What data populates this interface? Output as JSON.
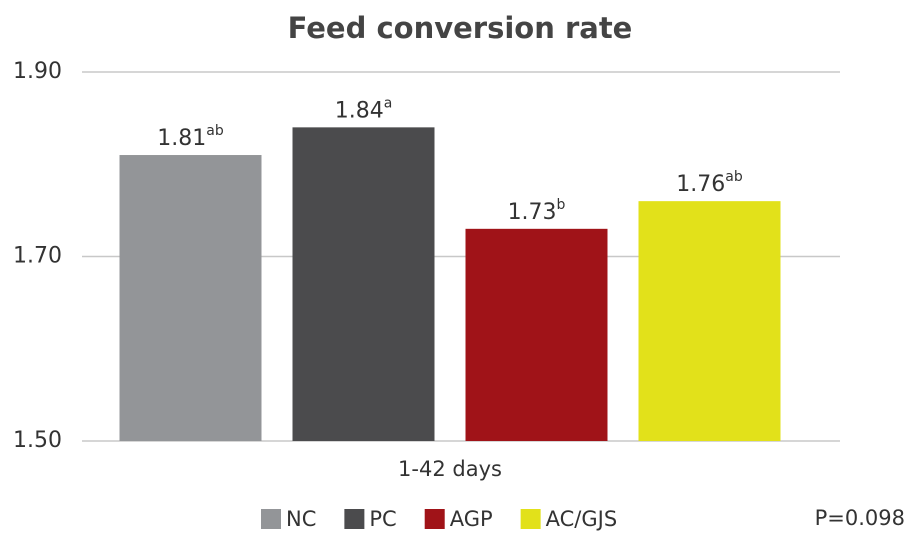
{
  "chart_data": {
    "type": "bar",
    "title": "Feed conversion rate",
    "categories": [
      "1-42 days"
    ],
    "series": [
      {
        "name": "NC",
        "color": "#939598",
        "values": [
          1.81
        ],
        "significance_letters": [
          "ab"
        ]
      },
      {
        "name": "PC",
        "color": "#4b4b4d",
        "values": [
          1.84
        ],
        "significance_letters": [
          "a"
        ]
      },
      {
        "name": "AGP",
        "color": "#a01318",
        "values": [
          1.73
        ],
        "significance_letters": [
          "b"
        ]
      },
      {
        "name": "AC/GJS",
        "color": "#e2e11a",
        "values": [
          1.76
        ],
        "significance_letters": [
          "ab"
        ]
      }
    ],
    "ylim": [
      1.5,
      1.9
    ],
    "yticks": [
      {
        "value": 1.5,
        "label": "1.50"
      },
      {
        "value": 1.7,
        "label": "1.70"
      },
      {
        "value": 1.9,
        "label": "1.90"
      }
    ],
    "grid": true,
    "legend": "bottom",
    "annotations": [
      "P=0.098"
    ]
  }
}
